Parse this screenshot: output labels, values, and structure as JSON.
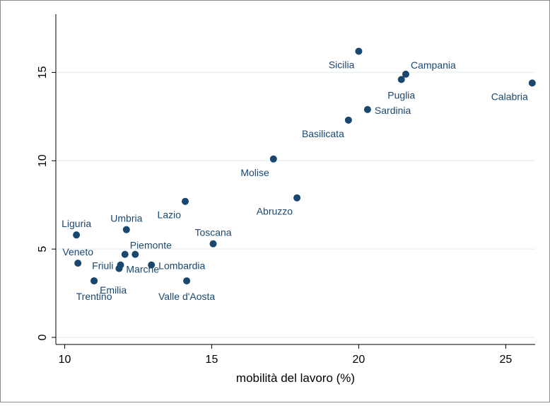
{
  "chart_data": {
    "type": "scatter",
    "title": "",
    "xlabel": "mobilità del lavoro (%)",
    "ylabel": "",
    "xlim": [
      9.7,
      26
    ],
    "ylim": [
      -0.4,
      18.3
    ],
    "xticks": [
      10,
      15,
      20,
      25
    ],
    "yticks": [
      0,
      5,
      10,
      15
    ],
    "grid": "horizontal",
    "legend": "none",
    "colors": {
      "marker": "#1a476f",
      "label": "#1a476f",
      "grid": "#eaf2f3",
      "axis": "#000000",
      "background": "#ffffff",
      "frame": "#8a8a8a"
    },
    "points": [
      {
        "label": "Sicilia",
        "x": 20.0,
        "y": 16.2,
        "pos": "bl"
      },
      {
        "label": "Campania",
        "x": 21.6,
        "y": 14.9,
        "pos": "tr"
      },
      {
        "label": "Puglia",
        "x": 21.45,
        "y": 14.6,
        "pos": "b"
      },
      {
        "label": "Calabria",
        "x": 25.9,
        "y": 14.4,
        "pos": "bl"
      },
      {
        "label": "Sardinia",
        "x": 20.3,
        "y": 12.9,
        "pos": "r"
      },
      {
        "label": "Basilicata",
        "x": 19.65,
        "y": 12.3,
        "pos": "bl"
      },
      {
        "label": "Molise",
        "x": 17.1,
        "y": 10.1,
        "pos": "bl"
      },
      {
        "label": "Abruzzo",
        "x": 17.9,
        "y": 7.9,
        "pos": "bl"
      },
      {
        "label": "Lazio",
        "x": 14.1,
        "y": 7.7,
        "pos": "bl"
      },
      {
        "label": "Liguria",
        "x": 10.4,
        "y": 5.8,
        "pos": "t"
      },
      {
        "label": "Umbria",
        "x": 12.1,
        "y": 6.1,
        "pos": "t"
      },
      {
        "label": "Toscana",
        "x": 15.05,
        "y": 5.3,
        "pos": "t"
      },
      {
        "label": "Piemonte",
        "x": 12.05,
        "y": 4.7,
        "pos": "tr"
      },
      {
        "label": "",
        "x": 12.4,
        "y": 4.7,
        "pos": "none"
      },
      {
        "label": "Veneto",
        "x": 10.45,
        "y": 4.2,
        "pos": "t"
      },
      {
        "label": "Friuli",
        "x": 11.9,
        "y": 4.1,
        "pos": "l"
      },
      {
        "label": "Marche",
        "x": 11.85,
        "y": 3.9,
        "pos": "r"
      },
      {
        "label": "Lombardia",
        "x": 12.95,
        "y": 4.1,
        "pos": "r"
      },
      {
        "label": "Emilia",
        "x": 11.0,
        "y": 3.2,
        "pos": "br"
      },
      {
        "label": "Trentino",
        "x": 11.0,
        "y": 3.2,
        "pos": "b"
      },
      {
        "label": "Valle d'Aosta",
        "x": 14.15,
        "y": 3.2,
        "pos": "b"
      }
    ]
  }
}
